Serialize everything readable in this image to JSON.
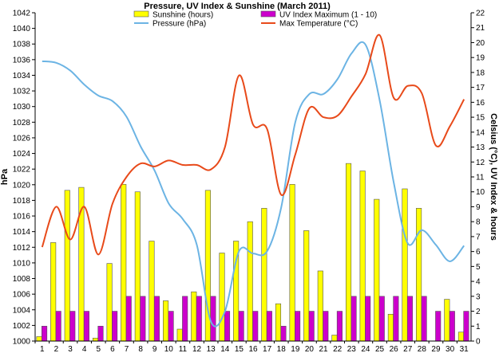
{
  "chart_data": {
    "type": "bar",
    "title": "Pressure, UV Index & Sunshine (March 2011)",
    "ylabel_left": "hPa",
    "ylabel_right": "Celsius (°C), UV Index & hours",
    "left_axis": {
      "min": 1000,
      "max": 1042,
      "step": 2
    },
    "right_axis": {
      "min": 0,
      "max": 22,
      "step": 1
    },
    "x": [
      "1",
      "2",
      "3",
      "4",
      "5",
      "6",
      "7",
      "8",
      "9",
      "10",
      "11",
      "12",
      "13",
      "14",
      "15",
      "16",
      "17",
      "18",
      "19",
      "20",
      "21",
      "22",
      "23",
      "24",
      "25",
      "26",
      "27",
      "28",
      "29",
      "30",
      "31"
    ],
    "grid": false,
    "legend_position": "top",
    "series": [
      {
        "name": "Sunshine (hours)",
        "kind": "bar",
        "axis": "right",
        "color": "#ffff00",
        "values": [
          0.3,
          6.6,
          10.1,
          10.3,
          0.2,
          5.2,
          10.5,
          10.0,
          6.7,
          2.7,
          0.8,
          3.3,
          10.1,
          5.9,
          6.7,
          8.0,
          8.9,
          2.5,
          10.5,
          7.4,
          4.7,
          0.4,
          11.9,
          11.4,
          9.5,
          1.8,
          10.2,
          8.9,
          0.0,
          2.8,
          0.6
        ]
      },
      {
        "name": "UV Index Maximum (1 - 10)",
        "kind": "bar",
        "axis": "right",
        "color": "#cc00cc",
        "values": [
          1,
          2,
          2,
          2,
          1,
          2,
          3,
          3,
          3,
          2,
          3,
          3,
          3,
          2,
          2,
          2,
          2,
          1,
          2,
          2,
          2,
          2,
          3,
          3,
          3,
          3,
          3,
          3,
          2,
          2,
          2
        ]
      },
      {
        "name": "Pressure (hPa)",
        "kind": "line",
        "axis": "left",
        "color": "#6cb4e4",
        "values": [
          1035.8,
          1035.6,
          1034.6,
          1032.8,
          1031.4,
          1030.7,
          1028.7,
          1024.9,
          1021.8,
          1017.6,
          1015.6,
          1012.3,
          1002.5,
          1003.8,
          1011.5,
          1011.2,
          1011.5,
          1017.1,
          1028.0,
          1031.6,
          1031.6,
          1033.5,
          1036.8,
          1037.9,
          1030.8,
          1020.3,
          1012.5,
          1014.2,
          1012.3,
          1010.2,
          1012.2
        ]
      },
      {
        "name": "Max Temperature (°C)",
        "kind": "line",
        "axis": "right",
        "color": "#e84a1a",
        "values": [
          6.3,
          9.0,
          6.8,
          9.0,
          5.8,
          9.2,
          11.0,
          11.9,
          11.7,
          12.1,
          11.8,
          11.8,
          11.5,
          13.0,
          17.8,
          14.5,
          14.2,
          9.8,
          12.5,
          15.6,
          15.0,
          15.1,
          16.4,
          17.9,
          20.5,
          16.3,
          17.1,
          16.6,
          13.1,
          14.4,
          16.2
        ]
      }
    ]
  }
}
